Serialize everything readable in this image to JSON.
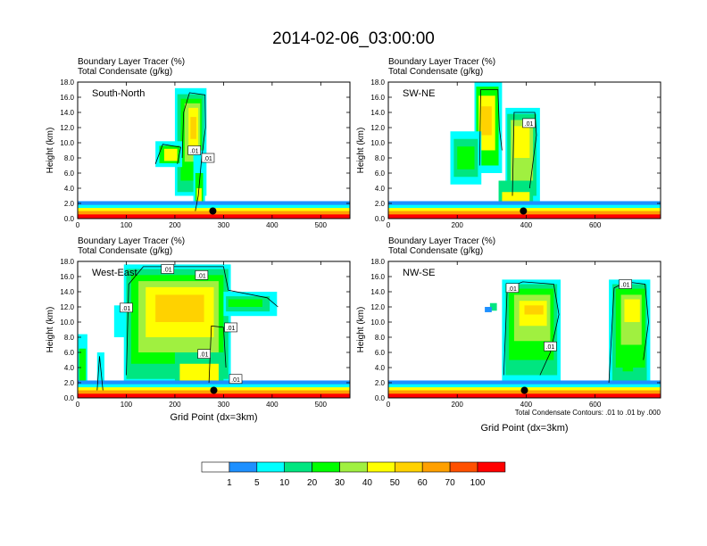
{
  "title": "2014-02-06_03:00:00",
  "field_label_1": "Boundary Layer Tracer   (%)",
  "field_label_2": "Total Condensate   (g/kg)",
  "y_axis_label": "Height (km)",
  "x_axis_label": "Grid Point (dx=3km)",
  "contour_note": "Total Condensate Contours: .01 to .01 by .000",
  "colors": [
    "#ffffff",
    "#1e90ff",
    "#00ffff",
    "#00e680",
    "#00ff00",
    "#a0f040",
    "#ffff00",
    "#ffd200",
    "#ffa000",
    "#ff5000",
    "#ff0000"
  ],
  "colorbar": {
    "labels": [
      "1",
      "5",
      "10",
      "20",
      "30",
      "40",
      "50",
      "60",
      "70",
      "100"
    ]
  },
  "chart_data": [
    {
      "type": "heatmap",
      "name": "South-North",
      "ylim": [
        0,
        18
      ],
      "xlim": [
        0,
        560
      ],
      "x_ticks": [
        0,
        100,
        200,
        300,
        400,
        500
      ],
      "y_ticks": [
        "0.0",
        "2.0",
        "4.0",
        "6.0",
        "8.0",
        "10.0",
        "12.0",
        "14.0",
        "16.0",
        "18.0"
      ],
      "contour_labels": [
        {
          "text": ".01",
          "x": 240,
          "y": 9.0
        },
        {
          "text": ".01",
          "x": 268,
          "y": 8.0
        }
      ],
      "marker": {
        "x": 278,
        "y": 1.0
      }
    },
    {
      "type": "heatmap",
      "name": "SW-NE",
      "ylim": [
        0,
        18
      ],
      "xlim": [
        0,
        790
      ],
      "x_ticks": [
        0,
        200,
        400,
        600
      ],
      "y_ticks": [
        "0.0",
        "2.0",
        "4.0",
        "6.0",
        "8.0",
        "10.0",
        "12.0",
        "14.0",
        "16.0",
        "18.0"
      ],
      "contour_labels": [
        {
          "text": ".01",
          "x": 408,
          "y": 12.6
        }
      ],
      "marker": {
        "x": 392,
        "y": 1.0
      }
    },
    {
      "type": "heatmap",
      "name": "West-East",
      "ylim": [
        0,
        18
      ],
      "xlim": [
        0,
        560
      ],
      "x_ticks": [
        0,
        100,
        200,
        300,
        400,
        500
      ],
      "y_ticks": [
        "0.0",
        "2.0",
        "4.0",
        "6.0",
        "8.0",
        "10.0",
        "12.0",
        "14.0",
        "16.0",
        "18.0"
      ],
      "contour_labels": [
        {
          "text": ".01",
          "x": 185,
          "y": 17.0
        },
        {
          "text": ".01",
          "x": 255,
          "y": 16.2
        },
        {
          "text": ".01",
          "x": 100,
          "y": 11.9
        },
        {
          "text": ".01",
          "x": 315,
          "y": 9.3
        },
        {
          "text": ".01",
          "x": 260,
          "y": 5.8
        },
        {
          "text": ".01",
          "x": 325,
          "y": 2.5
        }
      ],
      "marker": {
        "x": 280,
        "y": 1.0
      }
    },
    {
      "type": "heatmap",
      "name": "NW-SE",
      "ylim": [
        0,
        18
      ],
      "xlim": [
        0,
        790
      ],
      "x_ticks": [
        0,
        200,
        400,
        600
      ],
      "y_ticks": [
        "0.0",
        "2.0",
        "4.0",
        "6.0",
        "8.0",
        "10.0",
        "12.0",
        "14.0",
        "16.0",
        "18.0"
      ],
      "contour_labels": [
        {
          "text": ".01",
          "x": 360,
          "y": 14.5
        },
        {
          "text": ".01",
          "x": 688,
          "y": 15.0
        },
        {
          "text": ".01",
          "x": 470,
          "y": 6.8
        }
      ],
      "marker": {
        "x": 395,
        "y": 1.0
      }
    }
  ]
}
